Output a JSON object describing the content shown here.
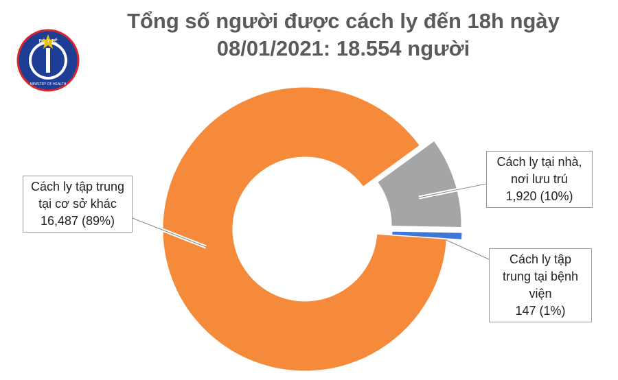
{
  "logo": {
    "top": "BỘ Y TẾ",
    "bottom": "MINISTRY OF HEALTH"
  },
  "chart_data": {
    "type": "donut",
    "title": [
      "Tổng số người được cách ly đến 18h ngày",
      "08/01/2021: 18.554 người"
    ],
    "categories": [
      "Cách ly tập trung tại cơ sở khác",
      "Cách ly tại nhà, nơi lưu trú",
      "Cách ly tập trung tại bệnh viện"
    ],
    "values": [
      16487,
      1920,
      147
    ],
    "value_labels": [
      "16,487 (89%)",
      "1,920 (10%)",
      "147 (1%)"
    ],
    "colors": [
      "#f58a3a",
      "#a5a5a5",
      "#3d78d6"
    ]
  }
}
